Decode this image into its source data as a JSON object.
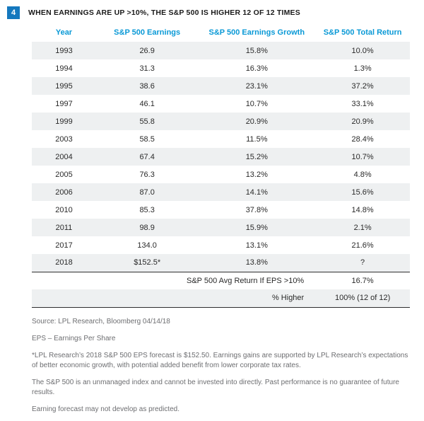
{
  "figure": {
    "badge": "4",
    "title": "WHEN EARNINGS ARE UP >10%, THE S&P 500 IS HIGHER 12 OF 12 TIMES"
  },
  "chart_data": {
    "type": "table",
    "columns": [
      "Year",
      "S&P 500 Earnings",
      "S&P 500 Earnings Growth",
      "S&P 500 Total Return"
    ],
    "rows": [
      [
        "1993",
        "26.9",
        "15.8%",
        "10.0%"
      ],
      [
        "1994",
        "31.3",
        "16.3%",
        "1.3%"
      ],
      [
        "1995",
        "38.6",
        "23.1%",
        "37.2%"
      ],
      [
        "1997",
        "46.1",
        "10.7%",
        "33.1%"
      ],
      [
        "1999",
        "55.8",
        "20.9%",
        "20.9%"
      ],
      [
        "2003",
        "58.5",
        "11.5%",
        "28.4%"
      ],
      [
        "2004",
        "67.4",
        "15.2%",
        "10.7%"
      ],
      [
        "2005",
        "76.3",
        "13.2%",
        "4.8%"
      ],
      [
        "2006",
        "87.0",
        "14.1%",
        "15.6%"
      ],
      [
        "2010",
        "85.3",
        "37.8%",
        "14.8%"
      ],
      [
        "2011",
        "98.9",
        "15.9%",
        "2.1%"
      ],
      [
        "2017",
        "134.0",
        "13.1%",
        "21.6%"
      ],
      [
        "2018",
        "$152.5*",
        "13.8%",
        "?"
      ]
    ],
    "summary_rows": [
      {
        "label": "S&P 500 Avg Return If EPS >10%",
        "value": "16.7%"
      },
      {
        "label": "% Higher",
        "value": "100% (12 of 12)"
      }
    ]
  },
  "footer": {
    "source": "Source: LPL Research, Bloomberg   04/14/18",
    "eps_note": "EPS – Earnings Per Share",
    "forecast_note": "*LPL Research’s 2018 S&P 500 EPS forecast is $152.50. Earnings gains are supported by LPL Research’s expectations of better economic growth, with potential added benefit from lower corporate tax rates.",
    "disclaimer_index": "The S&P 500 is an unmanaged index and cannot be invested into directly. Past performance is no guarantee of future results.",
    "disclaimer_forecast": "Earning forecast may not develop as predicted."
  },
  "colors": {
    "accent_blue": "#1478be",
    "header_text_blue": "#0a99d6",
    "row_stripe": "#eef0f1"
  }
}
